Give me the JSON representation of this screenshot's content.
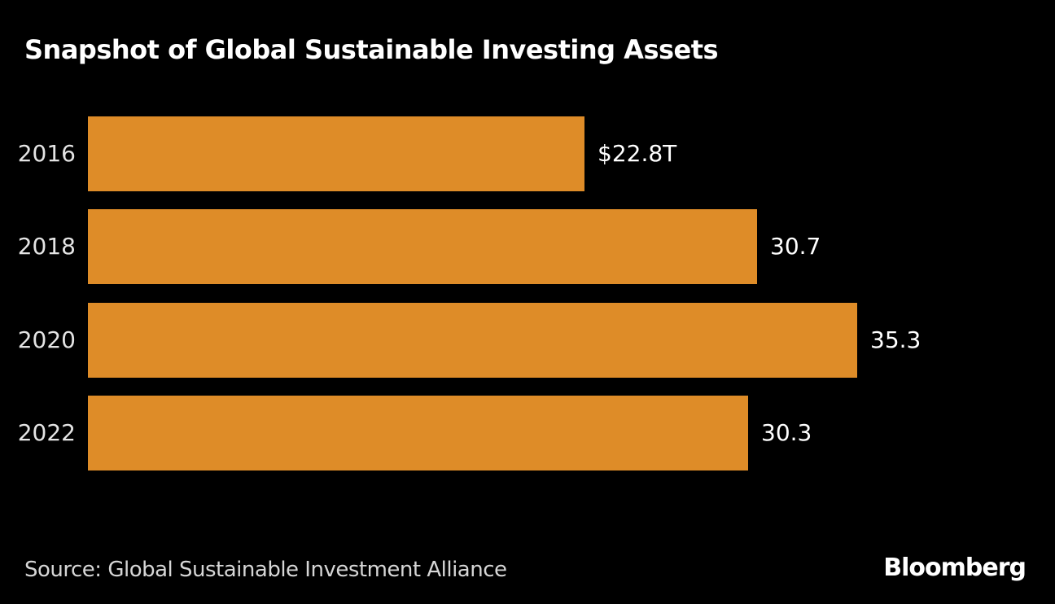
{
  "title": "Snapshot of Global Sustainable Investing Assets",
  "source": "Source: Global Sustainable Investment Alliance",
  "brand": "Bloomberg",
  "colors": {
    "background": "#000000",
    "bar": "#DE8C28",
    "title_text": "#FFFFFF",
    "year_label_text": "#E4E4E4",
    "value_label_text": "#FFFFFF",
    "source_text": "#D6D6D6",
    "brand_text": "#FFFFFF"
  },
  "chart_data": {
    "type": "bar",
    "orientation": "horizontal",
    "title": "Snapshot of Global Sustainable Investing Assets",
    "unit": "trillions of US dollars",
    "categories": [
      "2016",
      "2018",
      "2020",
      "2022"
    ],
    "values": [
      22.8,
      30.7,
      35.3,
      30.3
    ],
    "value_labels": [
      "$22.8T",
      "30.7",
      "35.3",
      "30.3"
    ],
    "xlabel": "",
    "ylabel": "",
    "xlim": [
      0,
      35.3
    ],
    "grid": false,
    "legend": false,
    "bar_color": "#DE8C28",
    "background_color": "#000000"
  }
}
